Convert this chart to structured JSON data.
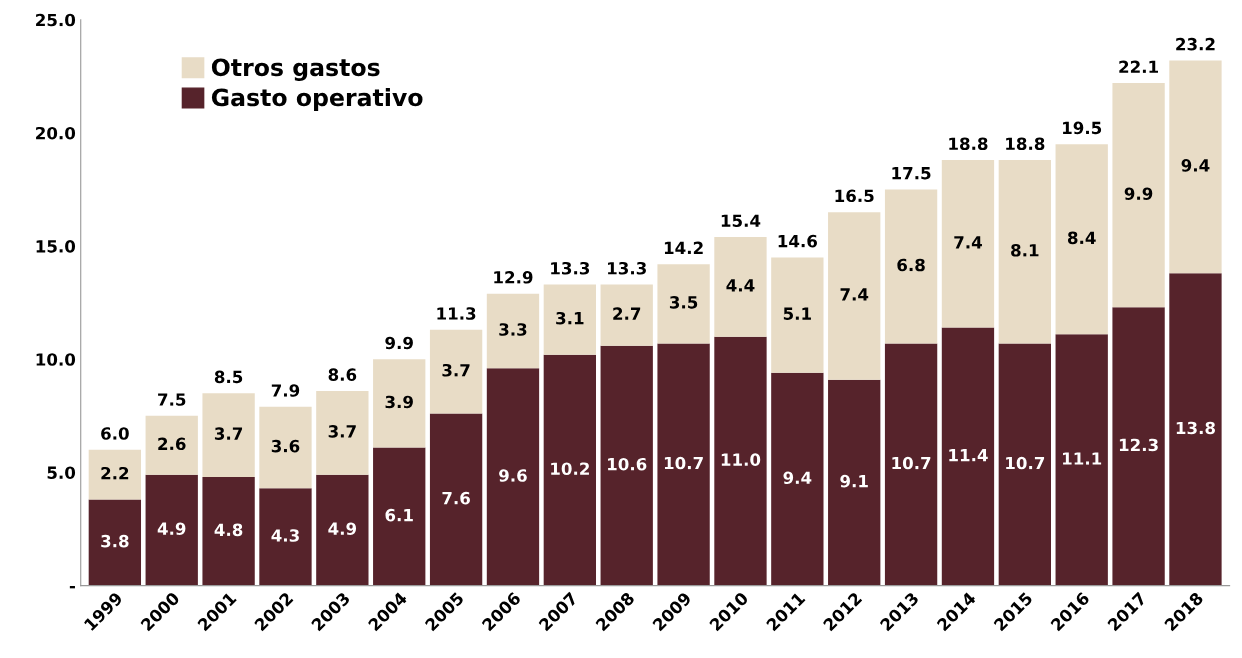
{
  "chart_data": {
    "type": "bar",
    "stacked": true,
    "categories": [
      "1999",
      "2000",
      "2001",
      "2002",
      "2003",
      "2004",
      "2005",
      "2006",
      "2007",
      "2008",
      "2009",
      "2010",
      "2011",
      "2012",
      "2013",
      "2014",
      "2015",
      "2016",
      "2017",
      "2018"
    ],
    "series": [
      {
        "name": "Gasto operativo",
        "color": "#56232b",
        "values": [
          3.8,
          4.9,
          4.8,
          4.3,
          4.9,
          6.1,
          7.6,
          9.6,
          10.2,
          10.6,
          10.7,
          11.0,
          9.4,
          9.1,
          10.7,
          11.4,
          10.7,
          11.1,
          12.3,
          13.8
        ],
        "value_labels": [
          "3.8",
          "4.9",
          "4.8",
          "4.3",
          "4.9",
          "6.1",
          "7.6",
          "9.6",
          "10.2",
          "10.6",
          "10.7",
          "11.0",
          "9.4",
          "9.1",
          "10.7",
          "11.4",
          "10.7",
          "11.1",
          "12.3",
          "13.8"
        ]
      },
      {
        "name": "Otros gastos",
        "color": "#e8dcc6",
        "values": [
          2.2,
          2.6,
          3.7,
          3.6,
          3.7,
          3.9,
          3.7,
          3.3,
          3.1,
          2.7,
          3.5,
          4.4,
          5.1,
          7.4,
          6.8,
          7.4,
          8.1,
          8.4,
          9.9,
          9.4
        ],
        "value_labels": [
          "2.2",
          "2.6",
          "3.7",
          "3.6",
          "3.7",
          "3.9",
          "3.7",
          "3.3",
          "3.1",
          "2.7",
          "3.5",
          "4.4",
          "5.1",
          "7.4",
          "6.8",
          "7.4",
          "8.1",
          "8.4",
          "9.9",
          "9.4"
        ]
      }
    ],
    "totals": [
      "6.0",
      "7.5",
      "8.5",
      "7.9",
      "8.6",
      "9.9",
      "11.3",
      "12.9",
      "13.3",
      "13.3",
      "14.2",
      "15.4",
      "14.6",
      "16.5",
      "17.5",
      "18.8",
      "18.8",
      "19.5",
      "22.1",
      "23.2"
    ],
    "ylim": [
      0,
      25
    ],
    "yticks": [
      {
        "value": 0,
        "label": "-"
      },
      {
        "value": 5,
        "label": "5.0"
      },
      {
        "value": 10,
        "label": "10.0"
      },
      {
        "value": 15,
        "label": "15.0"
      },
      {
        "value": 20,
        "label": "20.0"
      },
      {
        "value": 25,
        "label": "25.0"
      }
    ],
    "legend": "top left",
    "grid": false
  }
}
